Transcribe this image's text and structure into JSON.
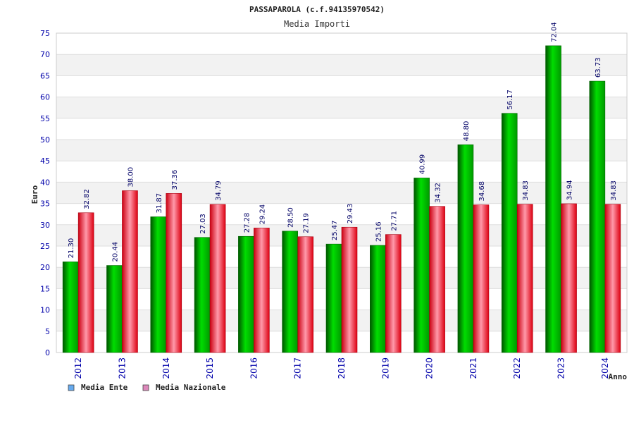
{
  "chart_data": {
    "type": "bar",
    "title": "PASSAPAROLA (c.f.94135970542)",
    "subtitle": "Media Importi",
    "ylabel": "Euro",
    "xlabel": "Anno",
    "ylim": [
      0,
      75
    ],
    "yticks": [
      0,
      5,
      10,
      15,
      20,
      25,
      30,
      35,
      40,
      45,
      50,
      55,
      60,
      65,
      70,
      75
    ],
    "categories": [
      "2012",
      "2013",
      "2014",
      "2015",
      "2016",
      "2017",
      "2018",
      "2019",
      "2020",
      "2021",
      "2022",
      "2023",
      "2024"
    ],
    "series": [
      {
        "name": "Media Ente",
        "color": "#00cc00",
        "legend_color": "#66aaee",
        "values": [
          21.3,
          20.44,
          31.87,
          27.03,
          27.28,
          28.5,
          25.47,
          25.16,
          40.99,
          48.8,
          56.17,
          72.04,
          63.73
        ],
        "labels": [
          "21.30",
          "20.44",
          "31.87",
          "27.03",
          "27.28",
          "28.50",
          "25.47",
          "25.16",
          "40.99",
          "48.80",
          "56.17",
          "72.04",
          "63.73"
        ]
      },
      {
        "name": "Media Nazionale",
        "color": "#ee1122",
        "legend_color": "#dd88bb",
        "values": [
          32.82,
          38.0,
          37.36,
          34.79,
          29.24,
          27.19,
          29.43,
          27.71,
          34.32,
          34.68,
          34.83,
          34.94,
          34.83
        ],
        "labels": [
          "32.82",
          "38.00",
          "37.36",
          "34.79",
          "29.24",
          "27.19",
          "29.43",
          "27.71",
          "34.32",
          "34.68",
          "34.83",
          "34.94",
          "34.83"
        ]
      }
    ],
    "grid": true,
    "legend_position": "bottom-left"
  }
}
